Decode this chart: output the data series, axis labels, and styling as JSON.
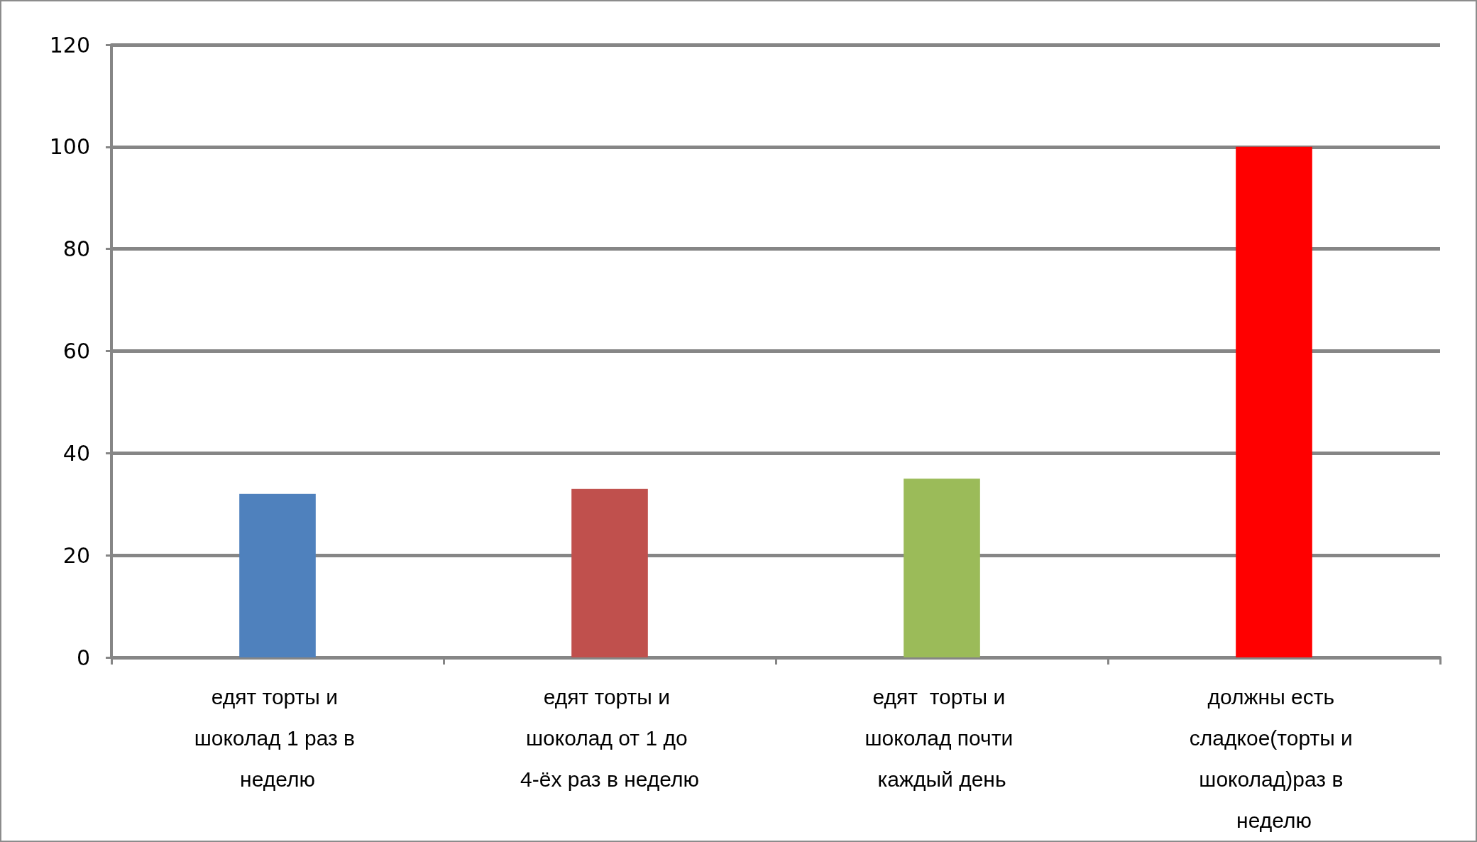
{
  "chart_data": {
    "type": "bar",
    "categories": [
      "едят торты и шоколад 1 раз в неделю",
      "едят торты и шоколад от 1 до 4-ёх раз в неделю",
      "едят  торты и шоколад почти каждый день",
      "должны есть сладкое(торты и шоколад)раз в неделю"
    ],
    "values": [
      32,
      33,
      35,
      100
    ],
    "colors": [
      "#4f81bd",
      "#c0504d",
      "#9bbb59",
      "#ff0000"
    ],
    "ylim": [
      0,
      120
    ],
    "yticks": [
      0,
      20,
      40,
      60,
      80,
      100,
      120
    ],
    "grid": "y"
  }
}
